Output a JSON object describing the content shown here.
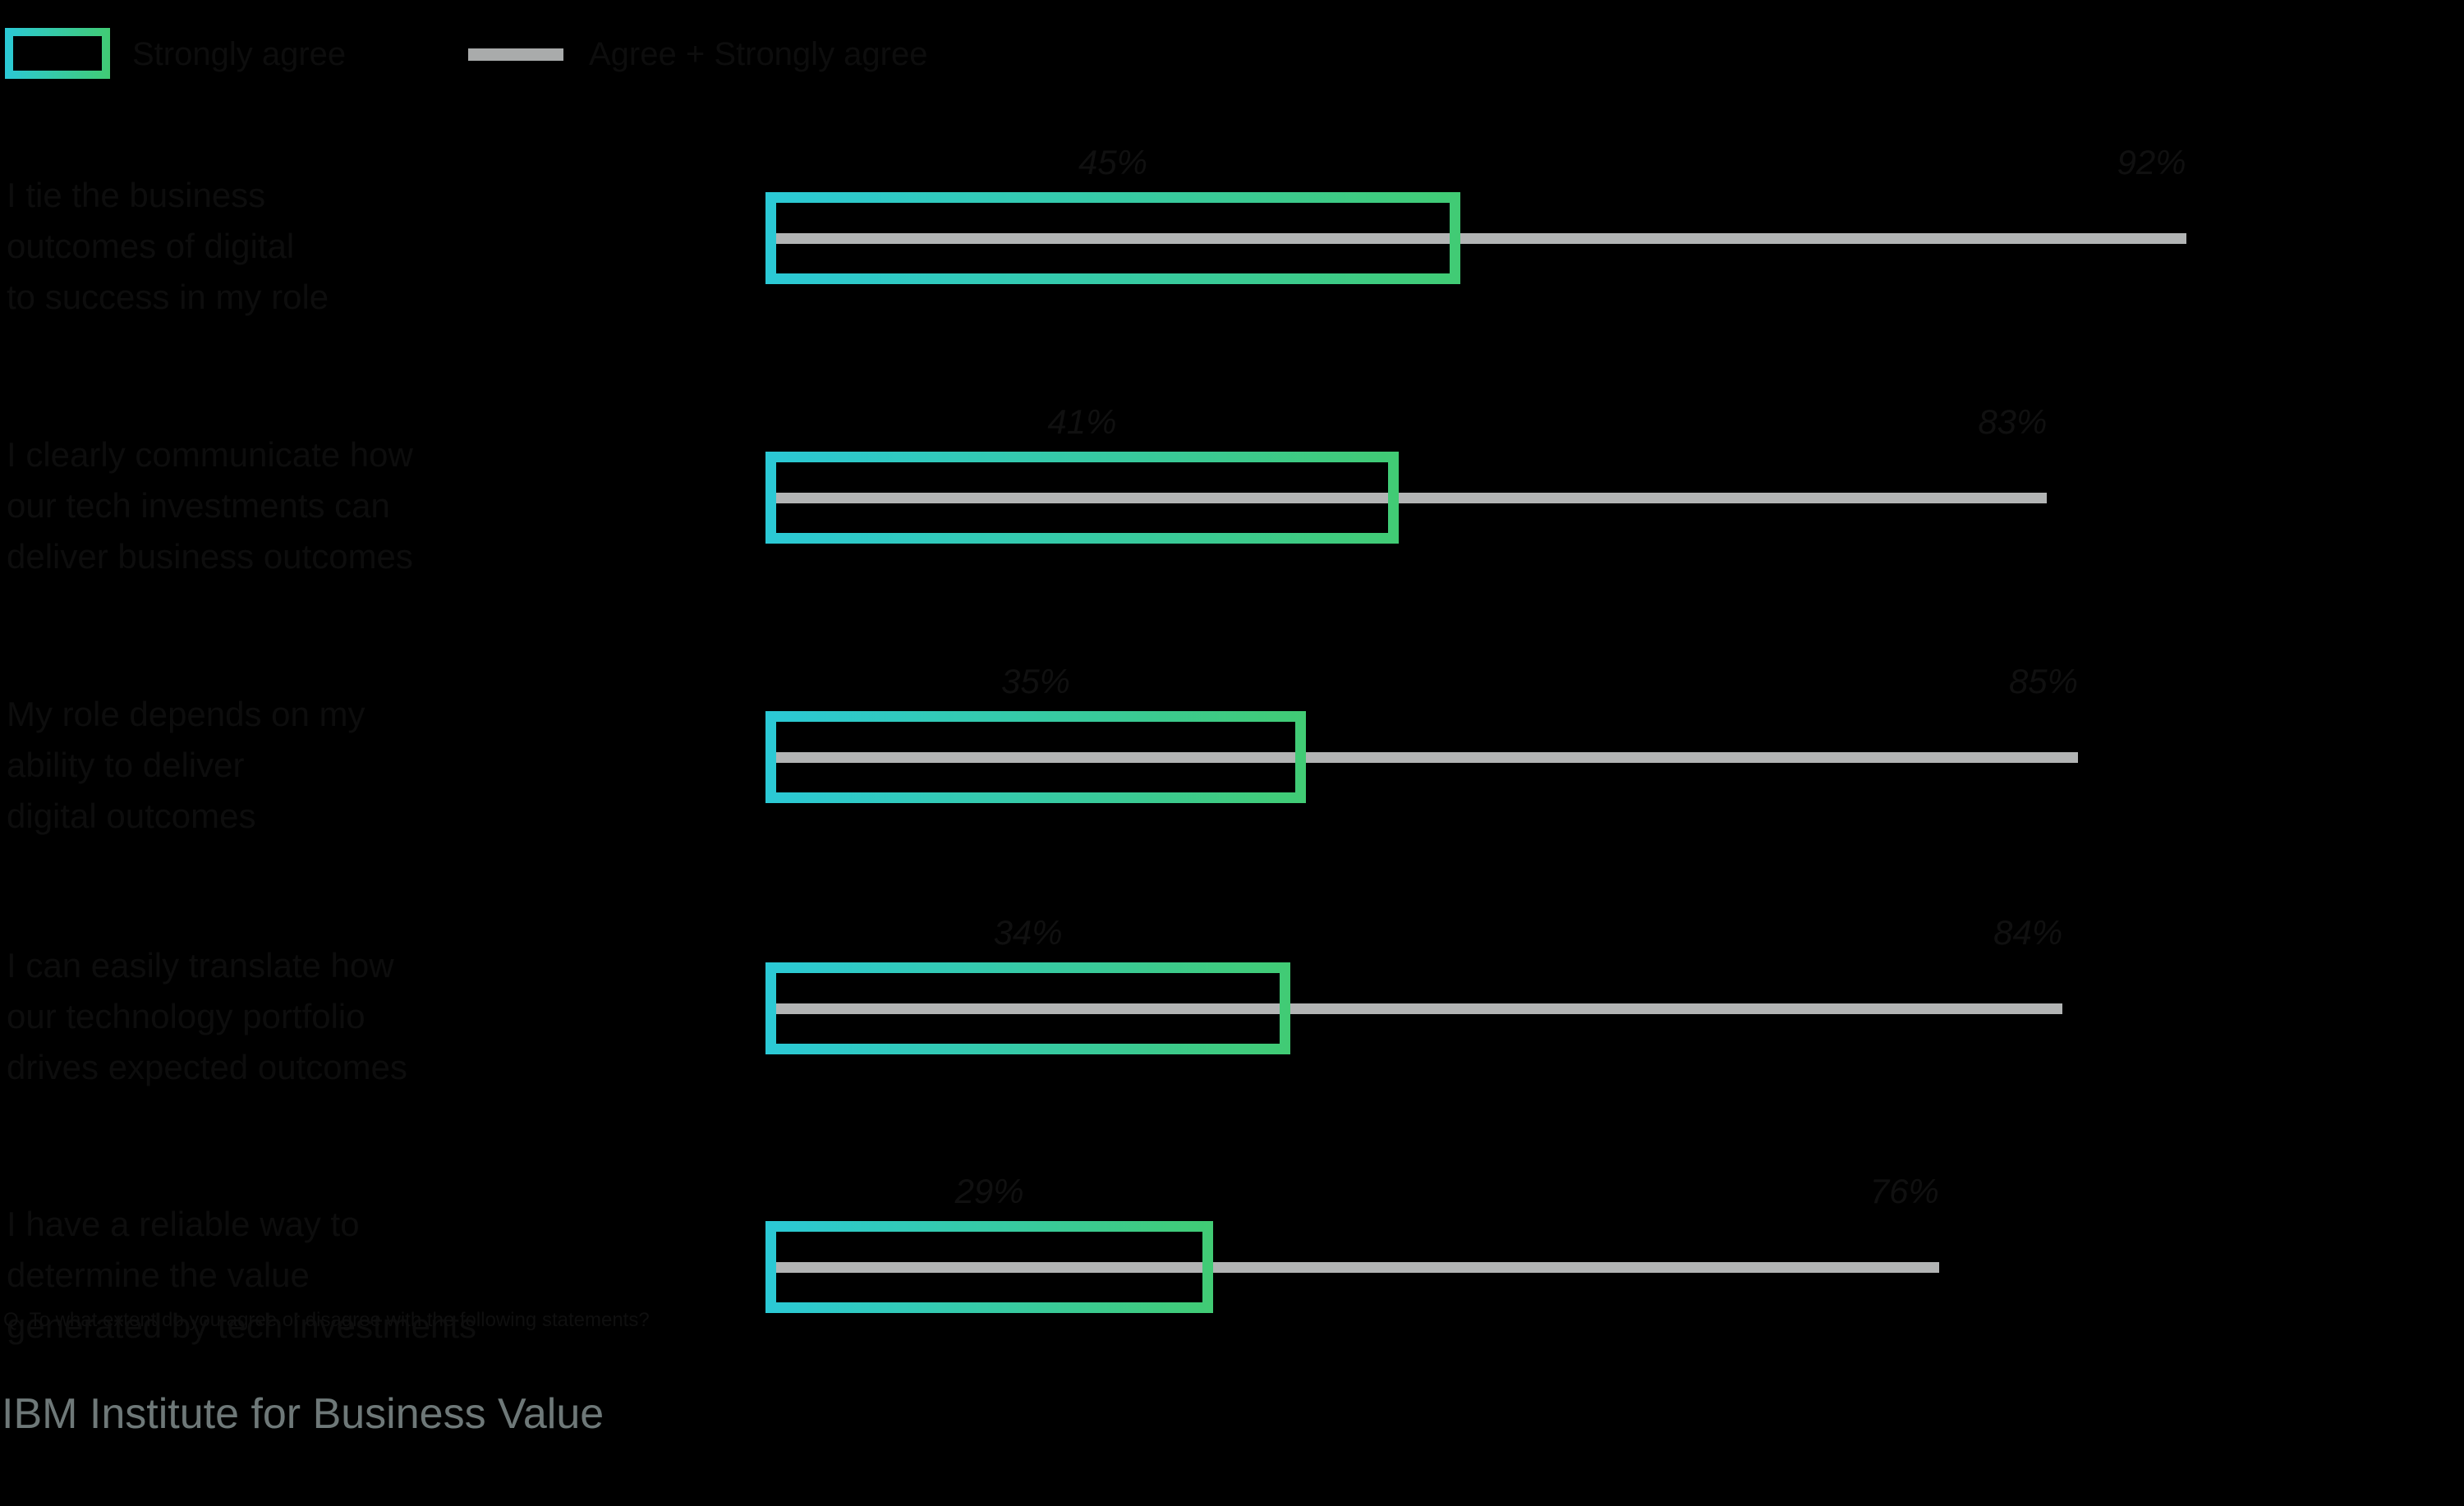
{
  "legend": {
    "strongly_agree_label": "Strongly agree",
    "total_agree_label": "Agree + Strongly agree"
  },
  "footer": {
    "question_note": "Q. To what extent do you agree or disagree with the following statements?",
    "source": "IBM Institute for Business Value"
  },
  "colors": {
    "background": "#000000",
    "bar_gradient_start": "#2bc9d6",
    "bar_gradient_end": "#41cb74",
    "total_line": "#b2b4b4",
    "hidden_text": "#0d0d0d",
    "source_text": "#6e7878"
  },
  "rows": [
    {
      "label_lines": [
        "I tie the business",
        "outcomes of digital",
        "to success in my role"
      ],
      "strongly_agree": 45,
      "total_agree": 92
    },
    {
      "label_lines": [
        "I clearly communicate how",
        "our tech investments can",
        "deliver business outcomes"
      ],
      "strongly_agree": 41,
      "total_agree": 83
    },
    {
      "label_lines": [
        "My role depends on my",
        "ability to deliver",
        "digital outcomes"
      ],
      "strongly_agree": 35,
      "total_agree": 85
    },
    {
      "label_lines": [
        "I can easily translate how",
        "our technology portfolio",
        "drives expected outcomes"
      ],
      "strongly_agree": 34,
      "total_agree": 84
    },
    {
      "label_lines": [
        "I have a reliable way to",
        "determine the value",
        "generated by tech investments"
      ],
      "strongly_agree": 29,
      "total_agree": 76
    }
  ],
  "chart_data": {
    "type": "bar",
    "orientation": "horizontal",
    "title": "",
    "unit": "percent",
    "categories": [
      "I tie the business outcomes of digital to success in my role",
      "I clearly communicate how our tech investments can deliver business outcomes",
      "My role depends on my ability to deliver digital outcomes",
      "I can easily translate how our technology portfolio drives expected outcomes",
      "I have a reliable way to determine the value generated by tech investments"
    ],
    "series": [
      {
        "name": "Strongly agree",
        "values": [
          45,
          41,
          35,
          34,
          29
        ]
      },
      {
        "name": "Agree + Strongly agree",
        "values": [
          92,
          83,
          85,
          84,
          76
        ]
      }
    ],
    "xlim": [
      0,
      100
    ],
    "grid": false,
    "legend_position": "top-left",
    "source": "IBM Institute for Business Value"
  }
}
